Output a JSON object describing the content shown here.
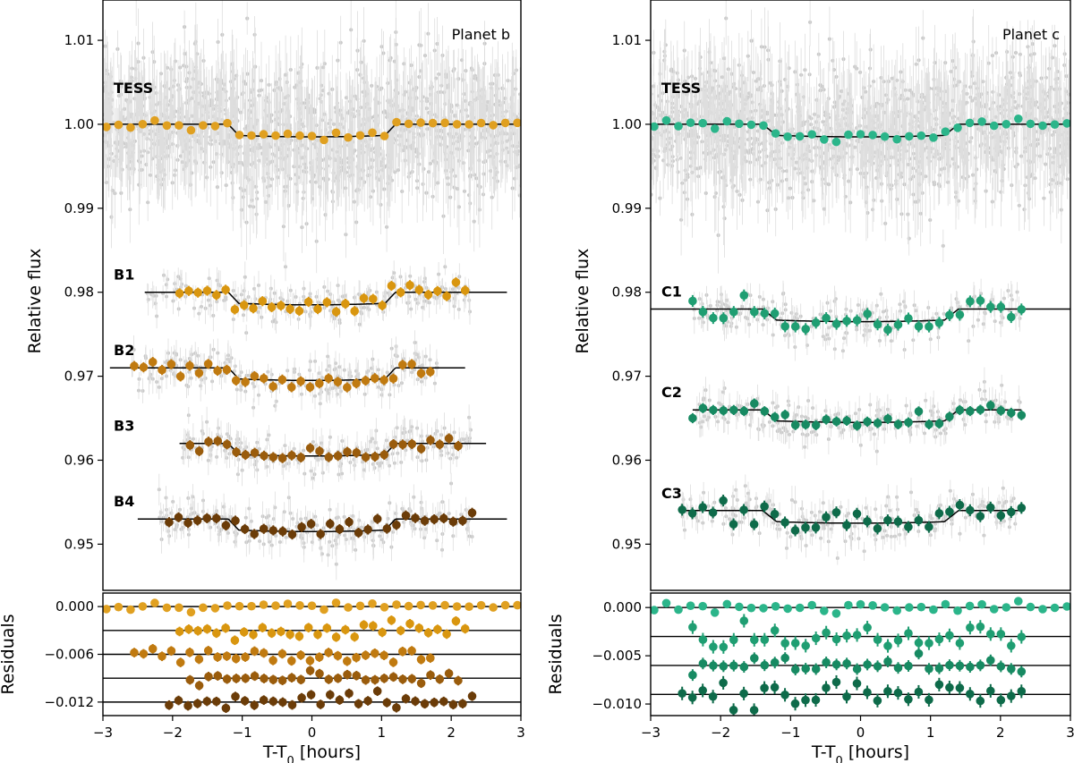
{
  "chart_data": [
    {
      "type": "scatter",
      "title": "Planet b",
      "xlabel": "T-T0 [hours]",
      "ylabel": "Relative flux",
      "residual_ylabel": "Residuals",
      "xlim": [
        -3,
        3
      ],
      "ylim": [
        0.9445,
        1.0148
      ],
      "residual_ylim": [
        -0.0137,
        0.0017
      ],
      "x_ticks": [
        -3,
        -2,
        -1,
        0,
        1,
        2,
        3
      ],
      "x_tick_labels": [
        "−3",
        "−2",
        "−1",
        "0",
        "1",
        "2",
        "3"
      ],
      "y_ticks": [
        0.95,
        0.96,
        0.97,
        0.98,
        0.99,
        1.0,
        1.01
      ],
      "y_tick_labels": [
        "0.95",
        "0.96",
        "0.97",
        "0.98",
        "0.99",
        "1.00",
        "1.01"
      ],
      "residual_ticks": [
        0.0,
        -0.006,
        -0.012
      ],
      "residual_tick_labels": [
        "0.000",
        "−0.006",
        "−0.012"
      ],
      "transit": {
        "ingress_start": -1.2,
        "ingress_end": -1.05,
        "egress_start": 1.05,
        "egress_end": 1.2
      },
      "raw_scatter_color": "#c8c8c8",
      "series": [
        {
          "name": "TESS",
          "baseline": 1.0,
          "depth": 0.0015,
          "x_range": [
            -3,
            3
          ],
          "bin_x_range": [
            -2.95,
            2.95
          ],
          "n_bins": 35,
          "color": "#e0a020",
          "raw_sigma": 0.004,
          "bin_sigma": 0.0003,
          "error_bar": 0.0002,
          "model_line_range": [
            -3,
            3
          ],
          "residual_offset": 0.0
        },
        {
          "name": "B1",
          "baseline": 0.98,
          "depth": 0.0015,
          "x_range": [
            -2.4,
            2.3
          ],
          "bin_x_range": [
            -1.9,
            2.2
          ],
          "n_bins": 32,
          "color": "#d9960f",
          "raw_sigma": 0.0012,
          "bin_sigma": 0.0005,
          "error_bar": 0.0006,
          "model_line_range": [
            -2.4,
            2.8
          ],
          "residual_offset": -0.003
        },
        {
          "name": "B2",
          "baseline": 0.971,
          "depth": 0.0015,
          "x_range": [
            -2.6,
            1.8
          ],
          "bin_x_range": [
            -2.55,
            1.7
          ],
          "n_bins": 33,
          "color": "#c07a10",
          "raw_sigma": 0.0012,
          "bin_sigma": 0.0005,
          "error_bar": 0.0006,
          "model_line_range": [
            -2.9,
            2.2
          ],
          "residual_offset": -0.006
        },
        {
          "name": "B3",
          "baseline": 0.962,
          "depth": 0.0015,
          "x_range": [
            -1.9,
            2.3
          ],
          "bin_x_range": [
            -1.75,
            2.1
          ],
          "n_bins": 30,
          "color": "#9a5c0c",
          "raw_sigma": 0.0012,
          "bin_sigma": 0.0004,
          "error_bar": 0.0006,
          "model_line_range": [
            -1.9,
            2.5
          ],
          "residual_offset": -0.009
        },
        {
          "name": "B4",
          "baseline": 0.953,
          "depth": 0.0015,
          "x_range": [
            -2.2,
            2.3
          ],
          "bin_x_range": [
            -2.05,
            2.3
          ],
          "n_bins": 33,
          "color": "#6b3c08",
          "raw_sigma": 0.0013,
          "bin_sigma": 0.0006,
          "error_bar": 0.0006,
          "model_line_range": [
            -2.5,
            2.8
          ],
          "residual_offset": -0.012
        }
      ],
      "dataset_labels": [
        "TESS",
        "B1",
        "B2",
        "B3",
        "B4"
      ]
    },
    {
      "type": "scatter",
      "title": "Planet c",
      "xlabel": "T-T0 [hours]",
      "ylabel": "Relative flux",
      "residual_ylabel": "Residuals",
      "xlim": [
        -3,
        3
      ],
      "ylim": [
        0.9445,
        1.0148
      ],
      "residual_ylim": [
        -0.0112,
        0.0015
      ],
      "x_ticks": [
        -3,
        -2,
        -1,
        0,
        1,
        2,
        3
      ],
      "x_tick_labels": [
        "−3",
        "−2",
        "−1",
        "0",
        "1",
        "2",
        "3"
      ],
      "y_ticks": [
        0.95,
        0.96,
        0.97,
        0.98,
        0.99,
        1.0,
        1.01
      ],
      "y_tick_labels": [
        "0.95",
        "0.96",
        "0.97",
        "0.98",
        "0.99",
        "1.00",
        "1.01"
      ],
      "residual_ticks": [
        0.0,
        -0.005,
        -0.01
      ],
      "residual_tick_labels": [
        "0.000",
        "−0.005",
        "−0.010"
      ],
      "transit": {
        "ingress_start": -1.4,
        "ingress_end": -1.2,
        "egress_start": 1.2,
        "egress_end": 1.4
      },
      "raw_scatter_color": "#c8c8c8",
      "series": [
        {
          "name": "TESS",
          "baseline": 1.0,
          "depth": 0.0015,
          "x_range": [
            -3,
            3
          ],
          "bin_x_range": [
            -2.95,
            2.95
          ],
          "n_bins": 35,
          "color": "#2bb58a",
          "raw_sigma": 0.004,
          "bin_sigma": 0.0003,
          "error_bar": 0.0002,
          "model_line_range": [
            -3,
            3
          ],
          "residual_offset": 0.0
        },
        {
          "name": "C1",
          "baseline": 0.978,
          "depth": 0.0015,
          "x_range": [
            -2.4,
            2.3
          ],
          "bin_x_range": [
            -2.4,
            2.3
          ],
          "n_bins": 33,
          "color": "#1f9e72",
          "raw_sigma": 0.0013,
          "bin_sigma": 0.0006,
          "error_bar": 0.0007,
          "model_line_range": [
            -3,
            3
          ],
          "residual_offset": -0.003
        },
        {
          "name": "C2",
          "baseline": 0.966,
          "depth": 0.0015,
          "x_range": [
            -2.4,
            2.3
          ],
          "bin_x_range": [
            -2.4,
            2.3
          ],
          "n_bins": 33,
          "color": "#178a62",
          "raw_sigma": 0.0012,
          "bin_sigma": 0.0004,
          "error_bar": 0.0006,
          "model_line_range": [
            -2.4,
            2.3
          ],
          "residual_offset": -0.006
        },
        {
          "name": "C3",
          "baseline": 0.954,
          "depth": 0.0015,
          "x_range": [
            -2.6,
            2.3
          ],
          "bin_x_range": [
            -2.55,
            2.3
          ],
          "n_bins": 34,
          "color": "#0e6b4a",
          "raw_sigma": 0.0013,
          "bin_sigma": 0.0006,
          "error_bar": 0.0007,
          "model_line_range": [
            -2.6,
            2.3
          ],
          "residual_offset": -0.009
        }
      ],
      "dataset_labels": [
        "TESS",
        "C1",
        "C2",
        "C3"
      ]
    }
  ]
}
